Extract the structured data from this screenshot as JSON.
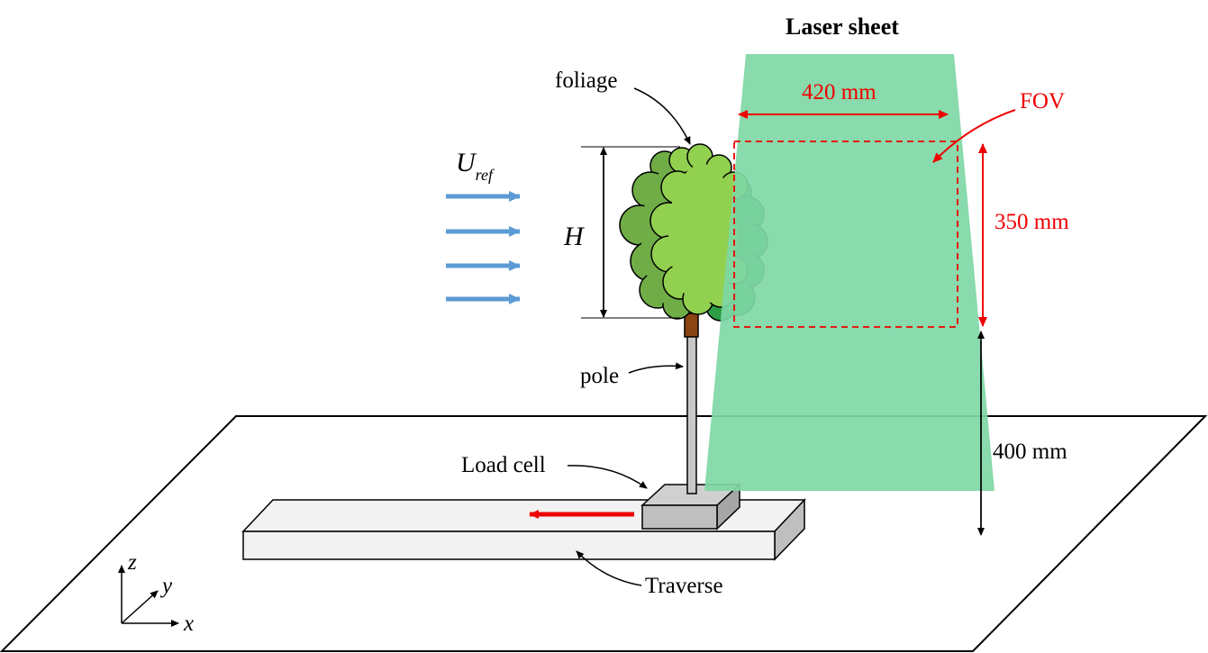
{
  "labels": {
    "laser_sheet": "Laser sheet",
    "foliage": "foliage",
    "pole": "pole",
    "load_cell": "Load cell",
    "traverse": "Traverse",
    "fov": "FOV",
    "width_420": "420 mm",
    "height_350": "350 mm",
    "height_400": "400 mm",
    "H": "H",
    "U": "U",
    "U_sub": "ref",
    "axis_x": "x",
    "axis_y": "y",
    "axis_z": "z"
  },
  "colors": {
    "laser": "#7fd7a5",
    "foliage_light": "#92d050",
    "foliage_mid": "#70ad47",
    "foliage_dark": "#2e9e45",
    "flow_arrow": "#5b9bd5",
    "annotation_red": "#ee0000",
    "trunk": "#8b4513",
    "load_cell": "#bfbfbf",
    "traverse": "#f2f2f2"
  }
}
